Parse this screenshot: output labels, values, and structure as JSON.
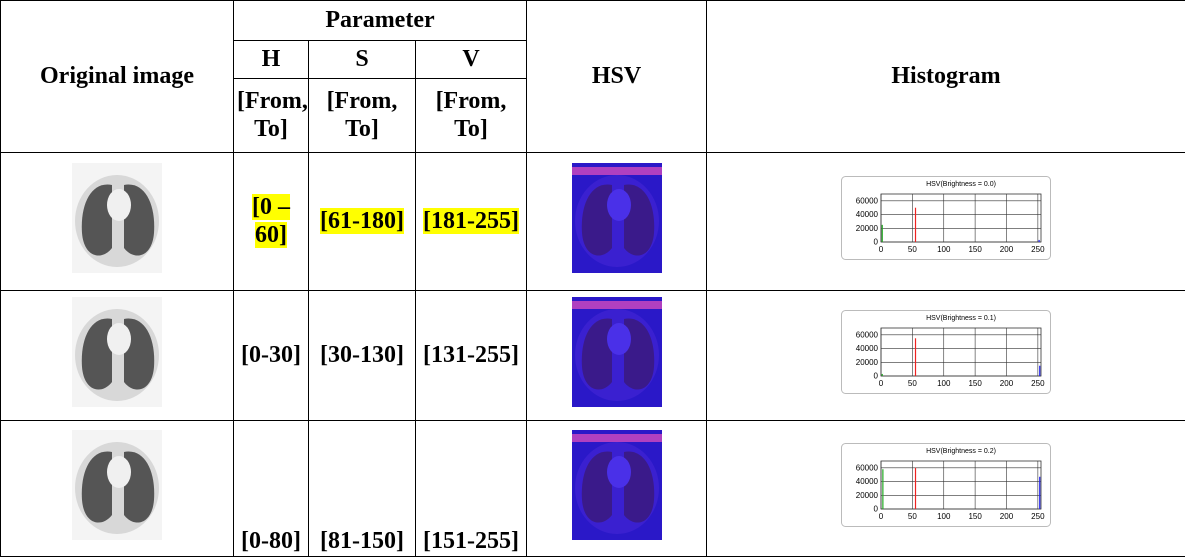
{
  "table": {
    "header": {
      "original_image": "Original image",
      "parameter": "Parameter",
      "h": "H",
      "s": "S",
      "v": "V",
      "from_to": [
        "[From, To]",
        "[From, To]",
        "[From, To]"
      ],
      "hsv": "HSV",
      "histogram": "Histogram"
    },
    "rows": [
      {
        "h": "[0 – 60]",
        "s": "[61-180]",
        "v": "[181-255]",
        "highlighted": true,
        "histogram": {
          "title": "HSV(Brightness = 0.0)",
          "xlim": [
            0,
            255
          ],
          "ylim": [
            0,
            70000
          ],
          "yticks": [
            0,
            20000,
            40000,
            60000
          ],
          "xticks": [
            0,
            50,
            100,
            150,
            200,
            250
          ],
          "spikes": [
            {
              "color": "#22aa22",
              "x": 2,
              "y": 25000
            },
            {
              "color": "#ee2222",
              "x": 55,
              "y": 50000
            },
            {
              "color": "#2222ee",
              "x": 252,
              "y": 3000
            }
          ]
        }
      },
      {
        "h": "[0-30]",
        "s": "[30-130]",
        "v": "[131-255]",
        "highlighted": false,
        "histogram": {
          "title": "HSV(Brightness = 0.1)",
          "xlim": [
            0,
            255
          ],
          "ylim": [
            0,
            70000
          ],
          "yticks": [
            0,
            20000,
            40000,
            60000
          ],
          "xticks": [
            0,
            50,
            100,
            150,
            200,
            250
          ],
          "spikes": [
            {
              "color": "#22aa22",
              "x": 2,
              "y": 3000
            },
            {
              "color": "#ee2222",
              "x": 55,
              "y": 55000
            },
            {
              "color": "#2222ee",
              "x": 253,
              "y": 15000
            }
          ]
        }
      },
      {
        "h": "[0-80]",
        "s": "[81-150]",
        "v": "[151-255]",
        "highlighted": false,
        "histogram": {
          "title": "HSV(Brightness = 0.2)",
          "xlim": [
            0,
            255
          ],
          "ylim": [
            0,
            70000
          ],
          "yticks": [
            0,
            20000,
            40000,
            60000
          ],
          "xticks": [
            0,
            50,
            100,
            150,
            200,
            250
          ],
          "spikes": [
            {
              "color": "#22aa22",
              "x": 3,
              "y": 58000
            },
            {
              "color": "#ee2222",
              "x": 55,
              "y": 60000
            },
            {
              "color": "#2222ee",
              "x": 253,
              "y": 47000
            }
          ]
        }
      }
    ]
  }
}
